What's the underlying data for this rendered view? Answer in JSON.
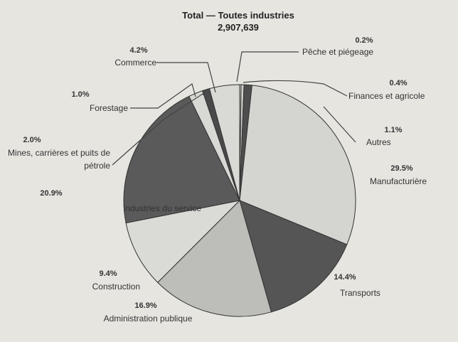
{
  "chart_data": {
    "type": "pie",
    "title": "Total — Toutes industries",
    "subtitle": "2,907,639",
    "categories": [
      "Pêche et piégeage",
      "Finances et agricole",
      "Autres",
      "Manufacturière",
      "Transports",
      "Administration publique",
      "Construction",
      "Industries du service",
      "Mines, carrières et puits de pétrole",
      "Forestage",
      "Commerce"
    ],
    "values": [
      0.2,
      0.4,
      1.1,
      29.5,
      14.4,
      16.9,
      9.4,
      20.9,
      2.0,
      1.0,
      4.2
    ],
    "value_labels": [
      "0.2%",
      "0.4%",
      "1.1%",
      "29.5%",
      "14.4%",
      "16.9%",
      "9.4%",
      "20.9%",
      "2.0%",
      "1.0%",
      "4.2%"
    ],
    "colors": [
      "#d6d6d2",
      "#cfcfcb",
      "#4e4e4e",
      "#d4d4d0",
      "#555555",
      "#bdbdb9",
      "#dadad6",
      "#5a5a5a",
      "#d8d8d4",
      "#4a4a4a",
      "#d9d9d5"
    ]
  }
}
